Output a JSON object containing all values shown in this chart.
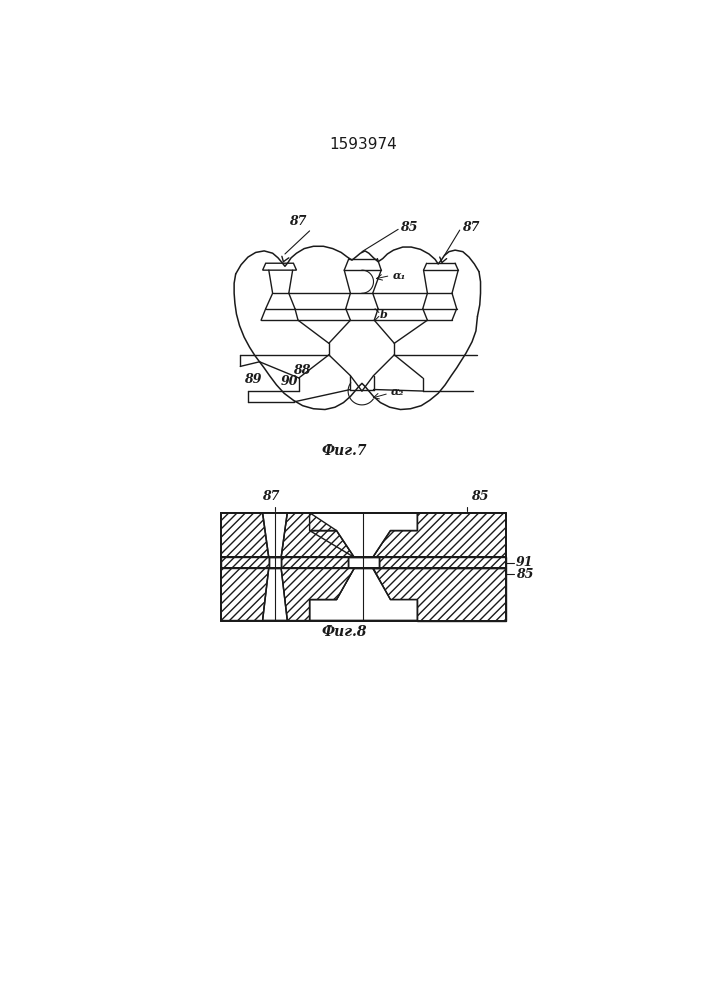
{
  "title": "1593974",
  "fig1_caption": "Фиг.7",
  "fig2_caption": "Фиг.8",
  "bg_color": "#ffffff",
  "line_color": "#1a1a1a",
  "lw": 1.0,
  "label_fs": 9,
  "caption_fs": 10
}
